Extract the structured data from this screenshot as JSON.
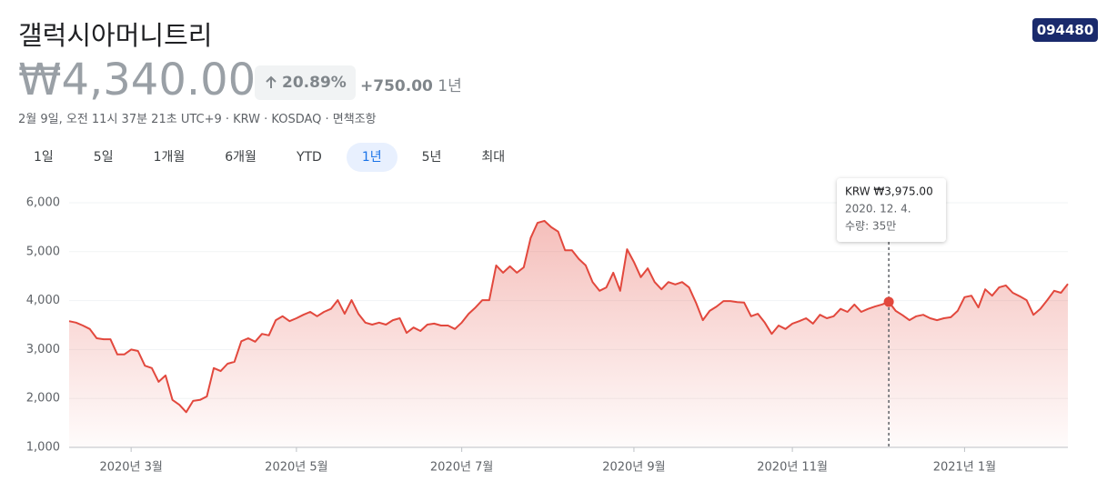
{
  "header": {
    "title": "갤럭시아머니트리",
    "ticker": "094480",
    "price": "₩4,340.00",
    "change_percent": "20.89%",
    "change_amount": "+750.00",
    "period": "1년",
    "info": "2월 9일, 오전 11시 37분 21초 UTC+9 · KRW · KOSDAQ · 면책조항"
  },
  "ranges": [
    "1일",
    "5일",
    "1개월",
    "6개월",
    "YTD",
    "1년",
    "5년",
    "최대"
  ],
  "selected_range": "1년",
  "tooltip": {
    "price": "KRW ₩3,975.00",
    "date": "2020. 12. 4.",
    "volume": "수량: 35만"
  },
  "chart_data": {
    "type": "line",
    "color": "#e2483d",
    "values": [
      3580,
      3550,
      3490,
      3420,
      3230,
      3210,
      3210,
      2900,
      2900,
      3000,
      2970,
      2670,
      2620,
      2340,
      2470,
      1970,
      1870,
      1720,
      1950,
      1970,
      2040,
      2620,
      2560,
      2710,
      2750,
      3170,
      3230,
      3160,
      3320,
      3290,
      3600,
      3680,
      3580,
      3640,
      3710,
      3770,
      3680,
      3770,
      3830,
      4010,
      3730,
      4010,
      3730,
      3550,
      3510,
      3550,
      3510,
      3600,
      3640,
      3340,
      3450,
      3380,
      3510,
      3530,
      3490,
      3490,
      3420,
      3550,
      3730,
      3860,
      4010,
      4010,
      4720,
      4570,
      4700,
      4570,
      4680,
      5280,
      5590,
      5630,
      5500,
      5410,
      5030,
      5030,
      4850,
      4720,
      4380,
      4200,
      4270,
      4570,
      4200,
      5050,
      4790,
      4480,
      4660,
      4380,
      4230,
      4380,
      4330,
      4380,
      4270,
      3960,
      3600,
      3790,
      3880,
      3990,
      3990,
      3970,
      3960,
      3680,
      3730,
      3550,
      3320,
      3490,
      3420,
      3530,
      3580,
      3640,
      3530,
      3710,
      3640,
      3680,
      3830,
      3770,
      3920,
      3770,
      3830,
      3880,
      3920,
      3975,
      3790,
      3700,
      3600,
      3680,
      3710,
      3640,
      3600,
      3640,
      3660,
      3790,
      4070,
      4100,
      3860,
      4230,
      4100,
      4270,
      4310,
      4160,
      4090,
      4010,
      3710,
      3830,
      4010,
      4200,
      4160,
      4340
    ],
    "xlim": [
      0,
      145
    ],
    "xticks": [
      {
        "value": 9,
        "label": "2020년 3월"
      },
      {
        "value": 33,
        "label": "2020년 5월"
      },
      {
        "value": 57,
        "label": "2020년 7월"
      },
      {
        "value": 82,
        "label": "2020년 9월"
      },
      {
        "value": 105,
        "label": "2020년 11월"
      },
      {
        "value": 130,
        "label": "2021년 1월"
      }
    ],
    "ylim": [
      1000,
      6000
    ],
    "yticks": [
      {
        "value": 1000,
        "label": "1,000"
      },
      {
        "value": 2000,
        "label": "2,000"
      },
      {
        "value": 3000,
        "label": "3,000"
      },
      {
        "value": 4000,
        "label": "4,000"
      },
      {
        "value": 5000,
        "label": "5,000"
      },
      {
        "value": 6000,
        "label": "6,000"
      }
    ],
    "grid": true
  }
}
